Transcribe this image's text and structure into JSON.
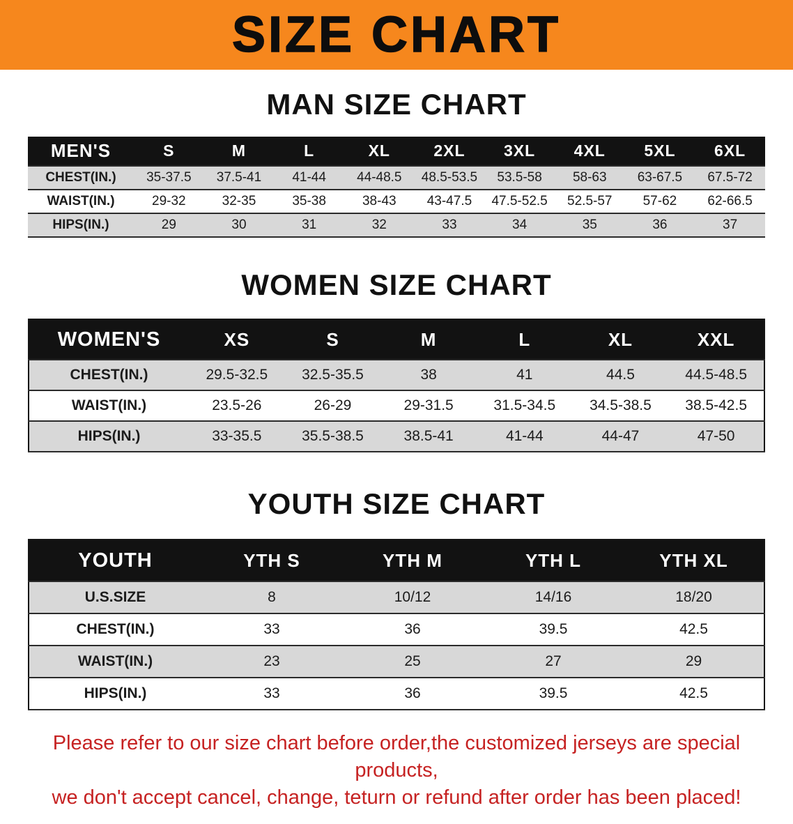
{
  "banner": {
    "title": "SIZE CHART"
  },
  "sections": {
    "men": {
      "heading": "MAN SIZE CHART",
      "table": {
        "header": [
          "MEN'S",
          "S",
          "M",
          "L",
          "XL",
          "2XL",
          "3XL",
          "4XL",
          "5XL",
          "6XL"
        ],
        "rows": [
          [
            "CHEST(IN.)",
            "35-37.5",
            "37.5-41",
            "41-44",
            "44-48.5",
            "48.5-53.5",
            "53.5-58",
            "58-63",
            "63-67.5",
            "67.5-72"
          ],
          [
            "WAIST(IN.)",
            "29-32",
            "32-35",
            "35-38",
            "38-43",
            "43-47.5",
            "47.5-52.5",
            "52.5-57",
            "57-62",
            "62-66.5"
          ],
          [
            "HIPS(IN.)",
            "29",
            "30",
            "31",
            "32",
            "33",
            "34",
            "35",
            "36",
            "37"
          ]
        ]
      }
    },
    "women": {
      "heading": "WOMEN SIZE CHART",
      "table": {
        "header": [
          "WOMEN'S",
          "XS",
          "S",
          "M",
          "L",
          "XL",
          "XXL"
        ],
        "rows": [
          [
            "CHEST(IN.)",
            "29.5-32.5",
            "32.5-35.5",
            "38",
            "41",
            "44.5",
            "44.5-48.5"
          ],
          [
            "WAIST(IN.)",
            "23.5-26",
            "26-29",
            "29-31.5",
            "31.5-34.5",
            "34.5-38.5",
            "38.5-42.5"
          ],
          [
            "HIPS(IN.)",
            "33-35.5",
            "35.5-38.5",
            "38.5-41",
            "41-44",
            "44-47",
            "47-50"
          ]
        ]
      }
    },
    "youth": {
      "heading": "YOUTH SIZE CHART",
      "table": {
        "header": [
          "YOUTH",
          "YTH S",
          "YTH M",
          "YTH L",
          "YTH XL"
        ],
        "rows": [
          [
            "U.S.SIZE",
            "8",
            "10/12",
            "14/16",
            "18/20"
          ],
          [
            "CHEST(IN.)",
            "33",
            "36",
            "39.5",
            "42.5"
          ],
          [
            "WAIST(IN.)",
            "23",
            "25",
            "27",
            "29"
          ],
          [
            "HIPS(IN.)",
            "33",
            "36",
            "39.5",
            "42.5"
          ]
        ]
      }
    }
  },
  "disclaimer": {
    "line1": "Please refer to our size chart before order,the customized jerseys are special products,",
    "line2": "we don't accept cancel, change, teturn or refund after order has been placed!"
  },
  "colors": {
    "banner_bg": "#F6871D",
    "header_bg": "#121212",
    "row_shade": "#d8d8d8",
    "disclaimer_red": "#c62222"
  }
}
